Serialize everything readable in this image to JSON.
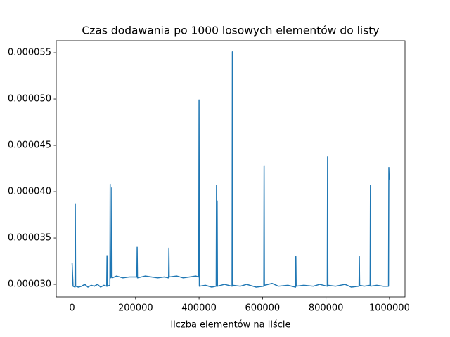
{
  "chart_data": {
    "type": "line",
    "title": "Czas dodawania po 1000 losowych elementów do listy",
    "xlabel": "liczba elementów na liście",
    "x": [
      0,
      3000,
      9000,
      10000,
      11000,
      20000,
      30000,
      40000,
      50000,
      60000,
      70000,
      80000,
      90000,
      100000,
      109000,
      110000,
      111000,
      119000,
      120000,
      121000,
      124000,
      125000,
      126000,
      140000,
      160000,
      180000,
      204000,
      205000,
      206000,
      230000,
      250000,
      270000,
      290000,
      304000,
      305000,
      306000,
      330000,
      350000,
      370000,
      390000,
      399000,
      400000,
      401000,
      420000,
      440000,
      454000,
      455000,
      456000,
      457000,
      458000,
      480000,
      504000,
      505000,
      506000,
      530000,
      550000,
      580000,
      604000,
      605000,
      606000,
      630000,
      650000,
      680000,
      704000,
      705000,
      706000,
      730000,
      760000,
      780000,
      804000,
      805000,
      806000,
      830000,
      860000,
      880000,
      904000,
      905000,
      906000,
      920000,
      939000,
      940000,
      941000,
      960000,
      980000,
      997000,
      998000,
      999000
    ],
    "series": [
      {
        "color": "#1f77b4",
        "values": [
          3.23e-05,
          2.98e-05,
          2.97e-05,
          3.87e-05,
          2.98e-05,
          2.97e-05,
          2.98e-05,
          3e-05,
          2.97e-05,
          2.99e-05,
          2.98e-05,
          3e-05,
          2.97e-05,
          2.99e-05,
          2.98e-05,
          3.31e-05,
          2.98e-05,
          2.99e-05,
          4.08e-05,
          3.07e-05,
          3.08e-05,
          4.04e-05,
          3.07e-05,
          3.09e-05,
          3.07e-05,
          3.08e-05,
          3.08e-05,
          3.4e-05,
          3.07e-05,
          3.09e-05,
          3.08e-05,
          3.07e-05,
          3.08e-05,
          3.07e-05,
          3.39e-05,
          3.08e-05,
          3.09e-05,
          3.07e-05,
          3.08e-05,
          3.09e-05,
          3.08e-05,
          4.99e-05,
          2.98e-05,
          2.99e-05,
          2.97e-05,
          2.98e-05,
          4.07e-05,
          2.99e-05,
          3.9e-05,
          2.98e-05,
          3e-05,
          2.98e-05,
          5.51e-05,
          2.99e-05,
          2.98e-05,
          3e-05,
          2.97e-05,
          2.98e-05,
          4.28e-05,
          2.99e-05,
          3.01e-05,
          2.98e-05,
          2.99e-05,
          2.97e-05,
          3.3e-05,
          2.98e-05,
          2.99e-05,
          2.98e-05,
          3e-05,
          2.98e-05,
          4.38e-05,
          2.99e-05,
          2.98e-05,
          3e-05,
          2.97e-05,
          2.98e-05,
          3.3e-05,
          2.99e-05,
          2.98e-05,
          2.99e-05,
          4.07e-05,
          2.98e-05,
          2.99e-05,
          2.98e-05,
          2.98e-05,
          4.26e-05,
          4.13e-05
        ]
      }
    ],
    "xlim": [
      -49950,
      1048950
    ],
    "ylim": [
      2.864e-05,
      5.629e-05
    ],
    "xticks": [
      0,
      200000,
      400000,
      600000,
      800000,
      1000000
    ],
    "yticks": [
      {
        "value": 3e-05,
        "label": "0.000030"
      },
      {
        "value": 3.5e-05,
        "label": "0.000035"
      },
      {
        "value": 4e-05,
        "label": "0.000040"
      },
      {
        "value": 4.5e-05,
        "label": "0.000045"
      },
      {
        "value": 5e-05,
        "label": "0.000050"
      },
      {
        "value": 5.5e-05,
        "label": "0.000055"
      }
    ],
    "grid": false
  }
}
